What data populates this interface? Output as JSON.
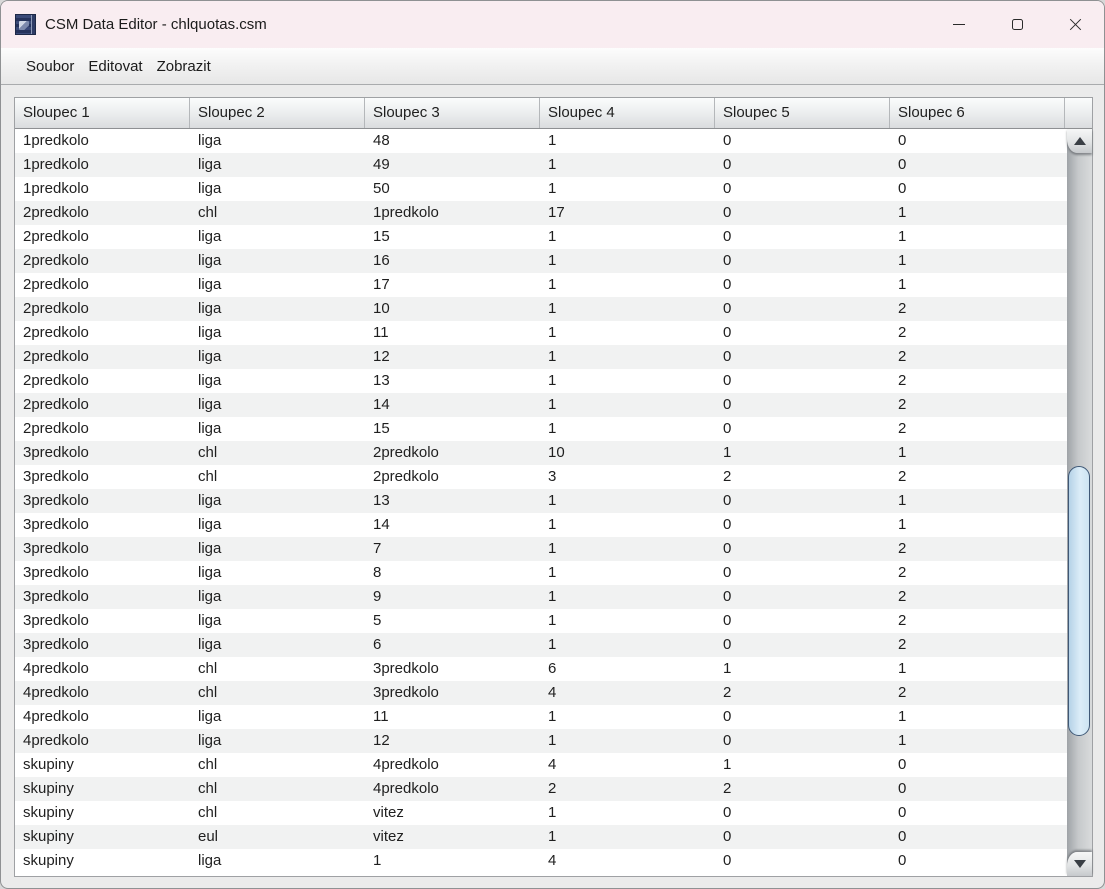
{
  "window": {
    "title": "CSM Data Editor - chlquotas.csm",
    "icons": [
      "app-icon",
      "minimize-icon",
      "maximize-icon",
      "close-icon"
    ]
  },
  "menu": {
    "items": [
      "Soubor",
      "Editovat",
      "Zobrazit"
    ]
  },
  "table": {
    "columns": [
      "Sloupec 1",
      "Sloupec 2",
      "Sloupec 3",
      "Sloupec 4",
      "Sloupec 5",
      "Sloupec 6"
    ],
    "rows": [
      [
        "1predkolo",
        "liga",
        "48",
        "1",
        "0",
        "0"
      ],
      [
        "1predkolo",
        "liga",
        "49",
        "1",
        "0",
        "0"
      ],
      [
        "1predkolo",
        "liga",
        "50",
        "1",
        "0",
        "0"
      ],
      [
        "2predkolo",
        "chl",
        "1predkolo",
        "17",
        "0",
        "1"
      ],
      [
        "2predkolo",
        "liga",
        "15",
        "1",
        "0",
        "1"
      ],
      [
        "2predkolo",
        "liga",
        "16",
        "1",
        "0",
        "1"
      ],
      [
        "2predkolo",
        "liga",
        "17",
        "1",
        "0",
        "1"
      ],
      [
        "2predkolo",
        "liga",
        "10",
        "1",
        "0",
        "2"
      ],
      [
        "2predkolo",
        "liga",
        "11",
        "1",
        "0",
        "2"
      ],
      [
        "2predkolo",
        "liga",
        "12",
        "1",
        "0",
        "2"
      ],
      [
        "2predkolo",
        "liga",
        "13",
        "1",
        "0",
        "2"
      ],
      [
        "2predkolo",
        "liga",
        "14",
        "1",
        "0",
        "2"
      ],
      [
        "2predkolo",
        "liga",
        "15",
        "1",
        "0",
        "2"
      ],
      [
        "3predkolo",
        "chl",
        "2predkolo",
        "10",
        "1",
        "1"
      ],
      [
        "3predkolo",
        "chl",
        "2predkolo",
        "3",
        "2",
        "2"
      ],
      [
        "3predkolo",
        "liga",
        "13",
        "1",
        "0",
        "1"
      ],
      [
        "3predkolo",
        "liga",
        "14",
        "1",
        "0",
        "1"
      ],
      [
        "3predkolo",
        "liga",
        "7",
        "1",
        "0",
        "2"
      ],
      [
        "3predkolo",
        "liga",
        "8",
        "1",
        "0",
        "2"
      ],
      [
        "3predkolo",
        "liga",
        "9",
        "1",
        "0",
        "2"
      ],
      [
        "3predkolo",
        "liga",
        "5",
        "1",
        "0",
        "2"
      ],
      [
        "3predkolo",
        "liga",
        "6",
        "1",
        "0",
        "2"
      ],
      [
        "4predkolo",
        "chl",
        "3predkolo",
        "6",
        "1",
        "1"
      ],
      [
        "4predkolo",
        "chl",
        "3predkolo",
        "4",
        "2",
        "2"
      ],
      [
        "4predkolo",
        "liga",
        "11",
        "1",
        "0",
        "1"
      ],
      [
        "4predkolo",
        "liga",
        "12",
        "1",
        "0",
        "1"
      ],
      [
        "skupiny",
        "chl",
        "4predkolo",
        "4",
        "1",
        "0"
      ],
      [
        "skupiny",
        "chl",
        "4predkolo",
        "2",
        "2",
        "0"
      ],
      [
        "skupiny",
        "chl",
        "vitez",
        "1",
        "0",
        "0"
      ],
      [
        "skupiny",
        "eul",
        "vitez",
        "1",
        "0",
        "0"
      ],
      [
        "skupiny",
        "liga",
        "1",
        "4",
        "0",
        "0"
      ]
    ]
  },
  "scrollbar": {
    "orientation": "vertical",
    "thumb_color": "#cde4f2",
    "thumb_border": "#3f5876"
  },
  "colors": {
    "titlebar_bg": "#f9edf1",
    "panel_bg": "#ebebeb",
    "row_alt_bg": "#f1f2f2",
    "header_border": "#8e9093"
  }
}
